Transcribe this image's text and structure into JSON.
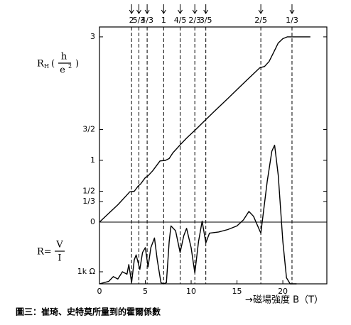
{
  "chart_data": {
    "type": "line",
    "caption": "圖三：崔琦、史特莫所量到的霍爾係數",
    "x_label": "→磁場強度 B（T）",
    "y_label": {
      "symbol": "R",
      "sub": "H",
      "open": "(",
      "num": "h",
      "den": "e",
      "sup": "2",
      "close": ")"
    },
    "y2_label": {
      "symbol": "R=",
      "num": "V",
      "den": "I"
    },
    "xlim": [
      0,
      24.8
    ],
    "xticks": [
      0,
      5,
      10,
      15,
      20
    ],
    "ylim": [
      -1,
      3.16
    ],
    "yticks": [
      0,
      {
        "value": 0.3333,
        "label": "1/3"
      },
      {
        "value": 0.5,
        "label": "1/2"
      },
      1,
      {
        "value": 1.5,
        "label": "3/2"
      },
      3
    ],
    "y2lim": [
      0,
      21.3
    ],
    "y2ticks": [
      {
        "value": 1,
        "label": "1k Ω"
      }
    ],
    "annotations": [
      {
        "x": 3.5,
        "label": "2"
      },
      {
        "x": 4.3,
        "label": "5/3"
      },
      {
        "x": 5.2,
        "label": "4/3"
      },
      {
        "x": 7.0,
        "label": "1"
      },
      {
        "x": 8.8,
        "label": "4/5"
      },
      {
        "x": 10.4,
        "label": "2/3"
      },
      {
        "x": 11.6,
        "label": "3/5"
      },
      {
        "x": 17.6,
        "label": "2/5"
      },
      {
        "x": 21.0,
        "label": "1/3"
      }
    ],
    "series": [
      {
        "color": "#000000",
        "x": [
          0,
          1,
          2,
          3,
          3.3,
          3.8,
          4.2,
          4.5,
          5,
          5.3,
          5.8,
          6.3,
          6.6,
          7.2,
          7.6,
          8,
          8.8,
          9.5,
          10.5,
          11.6,
          12.5,
          14,
          16,
          17,
          17.5,
          18,
          18.5,
          19,
          19.5,
          20,
          20.5,
          22,
          23
        ],
        "values": [
          0,
          0.14,
          0.28,
          0.44,
          0.49,
          0.5,
          0.58,
          0.62,
          0.72,
          0.75,
          0.83,
          0.93,
          0.99,
          1.0,
          1.03,
          1.12,
          1.25,
          1.36,
          1.5,
          1.66,
          1.79,
          2.0,
          2.29,
          2.43,
          2.5,
          2.52,
          2.6,
          2.75,
          2.9,
          2.97,
          3.0,
          3.0,
          3.0
        ]
      },
      {
        "color": "#000000",
        "axis": "y2",
        "x": [
          0,
          1,
          1.5,
          2,
          2.5,
          3,
          3.2,
          3.5,
          3.8,
          4.0,
          4.4,
          4.7,
          5.0,
          5.3,
          5.6,
          6.0,
          6.3,
          6.7,
          7.0,
          7.3,
          7.6,
          7.8,
          8.3,
          8.8,
          9.2,
          9.5,
          10.0,
          10.4,
          10.8,
          11.2,
          11.6,
          12,
          13,
          14,
          15,
          15.7,
          16.3,
          16.8,
          17.6,
          18.3,
          18.8,
          19.1,
          19.5,
          20.0,
          20.4,
          20.8,
          21.5
        ],
        "values": [
          0,
          0.2,
          0.6,
          0.4,
          1.0,
          0.8,
          1.6,
          0.1,
          2.0,
          2.4,
          1.2,
          2.6,
          3.0,
          1.4,
          3.0,
          3.8,
          2.0,
          0.1,
          0.0,
          0.1,
          3.5,
          4.8,
          4.4,
          2.6,
          4.0,
          4.6,
          3.0,
          0.9,
          3.5,
          5.2,
          3.4,
          4.2,
          4.3,
          4.5,
          4.8,
          5.3,
          6.0,
          5.6,
          4.2,
          8.5,
          11.0,
          11.5,
          9.0,
          3.5,
          0.5,
          0.0,
          0.0
        ]
      }
    ]
  }
}
